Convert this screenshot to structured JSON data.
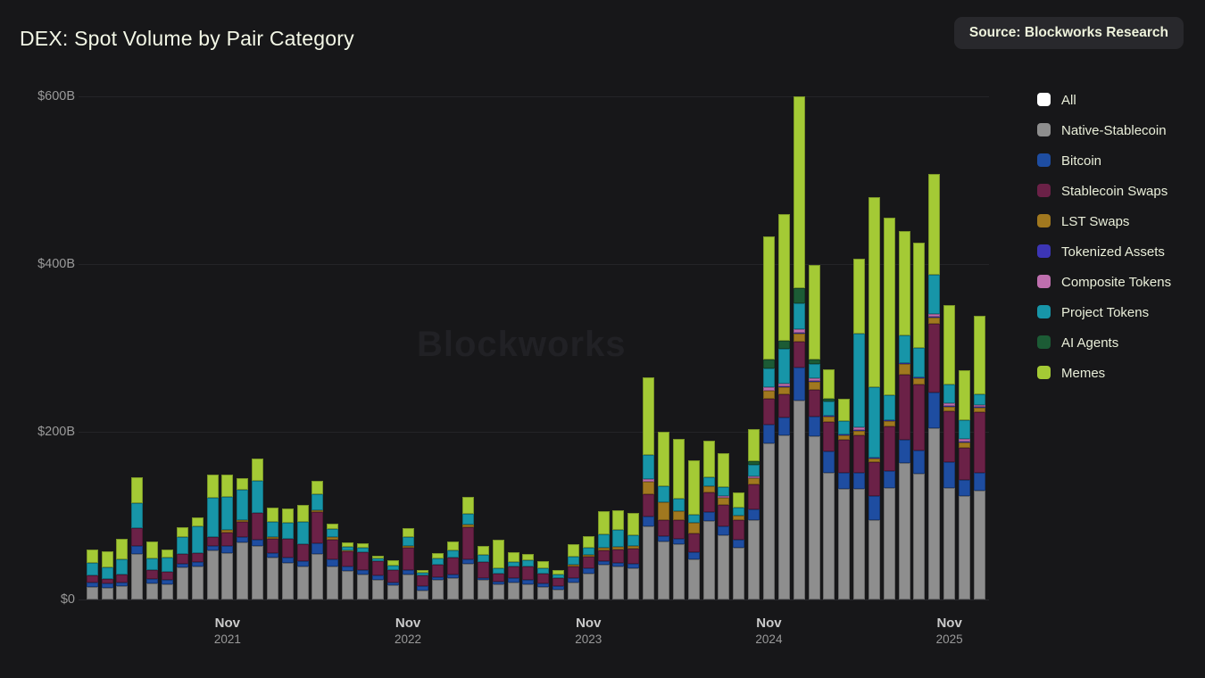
{
  "header": {
    "title": "DEX: Spot Volume by Pair Category",
    "source_badge": "Source: Blockworks Research"
  },
  "watermark": "Blockworks",
  "legend": {
    "items": [
      {
        "label": "All",
        "color": "#ffffff",
        "selected": true
      },
      {
        "label": "Native-Stablecoin",
        "color": "#8e8e8e",
        "selected": false
      },
      {
        "label": "Bitcoin",
        "color": "#1e4da1",
        "selected": false
      },
      {
        "label": "Stablecoin Swaps",
        "color": "#6b2147",
        "selected": false
      },
      {
        "label": "LST Swaps",
        "color": "#a1781f",
        "selected": false
      },
      {
        "label": "Tokenized Assets",
        "color": "#3c35b5",
        "selected": false
      },
      {
        "label": "Composite Tokens",
        "color": "#bf6fae",
        "selected": false
      },
      {
        "label": "Project Tokens",
        "color": "#1795a8",
        "selected": false
      },
      {
        "label": "AI Agents",
        "color": "#1c5b35",
        "selected": false
      },
      {
        "label": "Memes",
        "color": "#a4ca35",
        "selected": false
      }
    ]
  },
  "chart_data": {
    "type": "bar",
    "stacked": true,
    "title": "DEX: Spot Volume by Pair Category",
    "unit": "USD billions",
    "ylim": [
      0,
      600
    ],
    "grid": "horizontal",
    "legend_position": "right",
    "months": [
      "2021-02",
      "2021-03",
      "2021-04",
      "2021-05",
      "2021-06",
      "2021-07",
      "2021-08",
      "2021-09",
      "2021-10",
      "2021-11",
      "2021-12",
      "2022-01",
      "2022-02",
      "2022-03",
      "2022-04",
      "2022-05",
      "2022-06",
      "2022-07",
      "2022-08",
      "2022-09",
      "2022-10",
      "2022-11",
      "2022-12",
      "2023-01",
      "2023-02",
      "2023-03",
      "2023-04",
      "2023-05",
      "2023-06",
      "2023-07",
      "2023-08",
      "2023-09",
      "2023-10",
      "2023-11",
      "2023-12",
      "2024-01",
      "2024-02",
      "2024-03",
      "2024-04",
      "2024-05",
      "2024-06",
      "2024-07",
      "2024-08",
      "2024-09",
      "2024-10",
      "2024-11",
      "2024-12",
      "2025-01",
      "2025-02",
      "2025-03",
      "2025-04",
      "2025-05",
      "2025-06",
      "2025-07",
      "2025-08",
      "2025-09",
      "2025-10",
      "2025-11",
      "2025-12",
      "2026-01"
    ],
    "series": [
      {
        "name": "Native-Stablecoin",
        "color": "#8e8e8e",
        "values": [
          15,
          14,
          16,
          54,
          19,
          18,
          38,
          39,
          58,
          55,
          68,
          64,
          50,
          44,
          39,
          54,
          39,
          34,
          30,
          23,
          17,
          30,
          11,
          23,
          26,
          43,
          23,
          18,
          20.5,
          18,
          14.5,
          12,
          20,
          30.5,
          41,
          39.5,
          37.5,
          87,
          69,
          66,
          48,
          94,
          77,
          62,
          95,
          186.5,
          195.5,
          237,
          194.5,
          151,
          131.5,
          131.5,
          94.5,
          132.5,
          162.5,
          149.5,
          204.5,
          132.5,
          123.5,
          130
        ]
      },
      {
        "name": "Bitcoin",
        "color": "#1e4da1",
        "values": [
          5,
          5,
          4,
          10,
          5,
          5,
          5,
          6,
          6,
          9,
          6,
          7,
          5,
          6,
          7,
          13,
          9,
          5,
          5,
          6,
          3.5,
          5,
          4.5,
          3.5,
          4,
          4.5,
          3,
          3.5,
          5.5,
          5,
          4.5,
          4.5,
          5.5,
          6.5,
          4.5,
          4.5,
          5.5,
          11.5,
          7,
          6.5,
          8,
          10.5,
          10.5,
          9,
          12,
          22,
          21.5,
          40,
          24,
          25.5,
          19.5,
          19.5,
          28.5,
          20.5,
          27.5,
          28.5,
          42.5,
          31,
          19,
          21.5
        ]
      },
      {
        "name": "Stablecoin Swaps",
        "color": "#6b2147",
        "values": [
          9,
          6,
          10,
          21,
          11,
          10,
          11,
          10,
          11,
          16,
          19,
          32,
          17,
          22,
          20,
          37,
          23,
          18,
          21,
          17,
          15,
          27,
          13,
          15,
          19.5,
          39,
          19,
          9.5,
          13,
          16,
          11.5,
          9,
          14,
          14,
          13.5,
          15.5,
          17.5,
          27,
          19,
          22,
          22.5,
          23,
          25,
          24,
          30,
          31,
          27.5,
          31,
          32,
          35.5,
          39,
          44.5,
          41,
          53,
          78,
          78,
          81.5,
          60.5,
          38,
          71.5
        ]
      },
      {
        "name": "LST Swaps",
        "color": "#a1781f",
        "values": [
          0,
          0,
          0,
          0,
          0,
          0,
          0,
          0,
          0,
          2.5,
          2,
          0,
          2.5,
          0,
          0,
          2.5,
          3,
          1.5,
          0,
          0,
          0,
          2,
          0,
          0,
          0,
          2.5,
          0,
          0,
          0,
          0,
          0,
          0,
          2,
          2,
          3,
          3,
          3,
          15,
          21,
          10.5,
          12.5,
          8,
          9,
          5,
          8,
          9,
          9,
          9,
          9,
          6,
          6,
          6,
          4.5,
          7,
          12.5,
          8,
          8,
          6,
          6.5,
          5.5
        ]
      },
      {
        "name": "Tokenized Assets",
        "color": "#3c35b5",
        "values": [
          0,
          0,
          0,
          0,
          0,
          0,
          0,
          0,
          0,
          0,
          0,
          0,
          0,
          0,
          0,
          0,
          0,
          0,
          0,
          0,
          0,
          0,
          0,
          0,
          0,
          0,
          0,
          0,
          0,
          0,
          0,
          0,
          0,
          0,
          0,
          0,
          0,
          0,
          0,
          0,
          0,
          0,
          0,
          0,
          0,
          1,
          1,
          1,
          1,
          1,
          1,
          1,
          1,
          1,
          1,
          1,
          1,
          1,
          1,
          1
        ]
      },
      {
        "name": "Composite Tokens",
        "color": "#bf6fae",
        "values": [
          0,
          0,
          0,
          0,
          0,
          0,
          0,
          0,
          0,
          0,
          0,
          0,
          0,
          0,
          0,
          0,
          0,
          0,
          0,
          0,
          0,
          0,
          0,
          0,
          0,
          0,
          0,
          0,
          0,
          0,
          0,
          0,
          0,
          0,
          0,
          0,
          0,
          3,
          0,
          0,
          0,
          0,
          2,
          0,
          2,
          3.5,
          3.5,
          4.5,
          3.5,
          0,
          0,
          3,
          0,
          0,
          0,
          0,
          3,
          3,
          3,
          2.5
        ]
      },
      {
        "name": "Project Tokens",
        "color": "#1795a8",
        "values": [
          14.5,
          13,
          18,
          30,
          14.5,
          17,
          21,
          32,
          46,
          40,
          36,
          39,
          18,
          20,
          27,
          19,
          10,
          4.5,
          6,
          3,
          4.5,
          10,
          3.5,
          7,
          9,
          13,
          8,
          6.5,
          6,
          8,
          6.5,
          4.5,
          10,
          9,
          15.5,
          21,
          13,
          29,
          19,
          15,
          10.5,
          10.5,
          10.5,
          10,
          14,
          23,
          41.5,
          31,
          16.5,
          17,
          16,
          112,
          84,
          30,
          33.5,
          35.5,
          47,
          22,
          22.5,
          12.5
        ]
      },
      {
        "name": "AI Agents",
        "color": "#1c5b35",
        "values": [
          0,
          0,
          0,
          0,
          0,
          0,
          0,
          0,
          0,
          0,
          0,
          0,
          0,
          0,
          0,
          0,
          0,
          0,
          0,
          0,
          0,
          0,
          0,
          0,
          0,
          0,
          0,
          0,
          0,
          0,
          0,
          0,
          0,
          0,
          0,
          0,
          0,
          0,
          0,
          0,
          0,
          0,
          0,
          0,
          4,
          10,
          9.5,
          18,
          5.5,
          3.5,
          0,
          0,
          0,
          0,
          0,
          0,
          0,
          0,
          0,
          0
        ]
      },
      {
        "name": "Memes",
        "color": "#a4ca35",
        "values": [
          16,
          19,
          24,
          31,
          19.5,
          10,
          11,
          11,
          28,
          27,
          14,
          26,
          17,
          17,
          20,
          16,
          6,
          5,
          5.5,
          3.5,
          6.5,
          11,
          3.5,
          6.5,
          11,
          20.5,
          11,
          34,
          11,
          7.5,
          8.5,
          5,
          14,
          13.5,
          27.5,
          23,
          26.5,
          92.5,
          65,
          72,
          64,
          43.5,
          40.5,
          18,
          38,
          147,
          150.5,
          228.5,
          113,
          35.5,
          26,
          88.5,
          226,
          211,
          124,
          125.5,
          120,
          95.5,
          60,
          94
        ]
      }
    ],
    "yticks": [
      {
        "label": "$0",
        "value": 0
      },
      {
        "label": "$200B",
        "value": 200
      },
      {
        "label": "$400B",
        "value": 400
      },
      {
        "label": "$600B",
        "value": 600
      }
    ],
    "xticks": [
      {
        "month_index": 9,
        "label": "Nov",
        "sublabel": "2021"
      },
      {
        "month_index": 21,
        "label": "Nov",
        "sublabel": "2022"
      },
      {
        "month_index": 33,
        "label": "Nov",
        "sublabel": "2023"
      },
      {
        "month_index": 45,
        "label": "Nov",
        "sublabel": "2024"
      },
      {
        "month_index": 57,
        "label": "Nov",
        "sublabel": "2025"
      }
    ]
  }
}
